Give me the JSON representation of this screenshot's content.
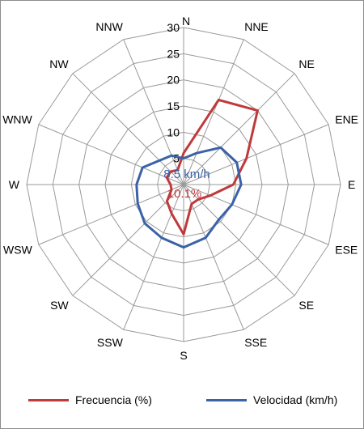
{
  "chart_data": {
    "type": "radar",
    "directions": [
      "N",
      "NNE",
      "NE",
      "ENE",
      "E",
      "ESE",
      "SE",
      "SSE",
      "S",
      "SSW",
      "SW",
      "WSW",
      "W",
      "WNW",
      "NW",
      "NNW"
    ],
    "r_ticks": [
      "5",
      "10",
      "15",
      "20",
      "25",
      "30"
    ],
    "r_range": [
      0,
      30
    ],
    "grid": true,
    "legend_position": "bottom",
    "series": [
      {
        "name": "Frecuencia (%)",
        "color": "#c0393b",
        "values": [
          6,
          17.5,
          20,
          13,
          9.5,
          5.5,
          4,
          4,
          9.5,
          6,
          4.5,
          2.5,
          2.5,
          3.5,
          3.5,
          3
        ]
      },
      {
        "name": "Velocidad (km/h)",
        "color": "#3a62a7",
        "values": [
          5,
          6.5,
          10,
          11,
          11,
          10,
          9.5,
          11,
          12,
          11,
          10.5,
          9.5,
          9,
          8.5,
          6.5,
          6
        ]
      }
    ],
    "annotations": {
      "speed_value": "8.5 km/h",
      "frequency_value": "10.1%"
    }
  },
  "legend": {
    "frequency_label": "Frecuencia (%)",
    "speed_label": "Velocidad (km/h)"
  }
}
